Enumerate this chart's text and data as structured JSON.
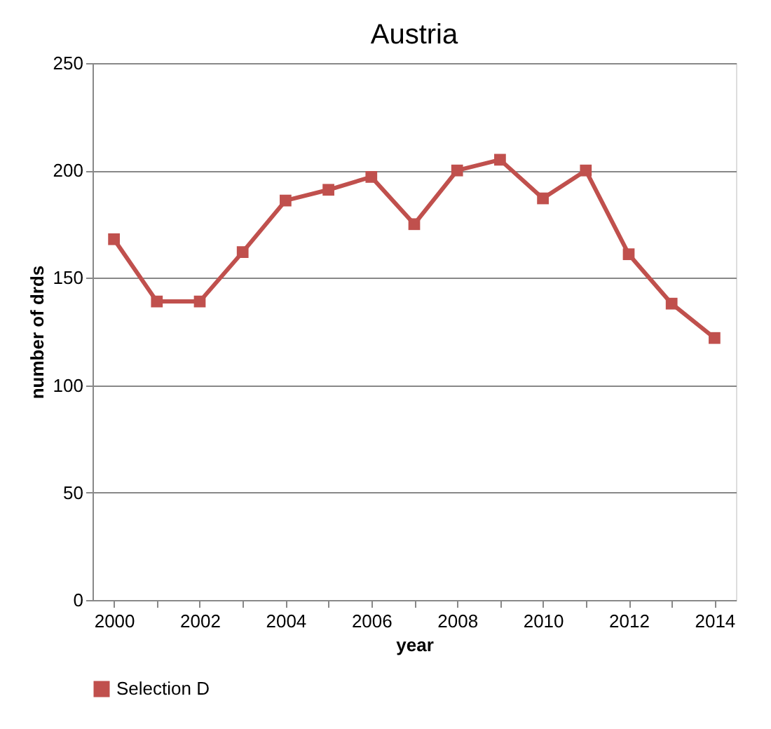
{
  "chart_data": {
    "type": "line",
    "title": "Austria",
    "xlabel": "year",
    "ylabel": "number of drds",
    "categories": [
      "2000",
      null,
      "2002",
      null,
      "2004",
      null,
      "2006",
      null,
      "2008",
      null,
      "2010",
      null,
      "2012",
      null,
      "2014"
    ],
    "series": [
      {
        "name": "Selection D",
        "color": "#c0504d",
        "values": [
          168,
          139,
          139,
          162,
          186,
          191,
          197,
          175,
          200,
          205,
          187,
          200,
          161,
          138,
          122
        ]
      }
    ],
    "ylim": [
      0,
      250
    ],
    "yticks": [
      0,
      50,
      100,
      150,
      200,
      250
    ],
    "grid": "y",
    "legend": "bottom",
    "marker": "square",
    "line_style": "solid"
  }
}
